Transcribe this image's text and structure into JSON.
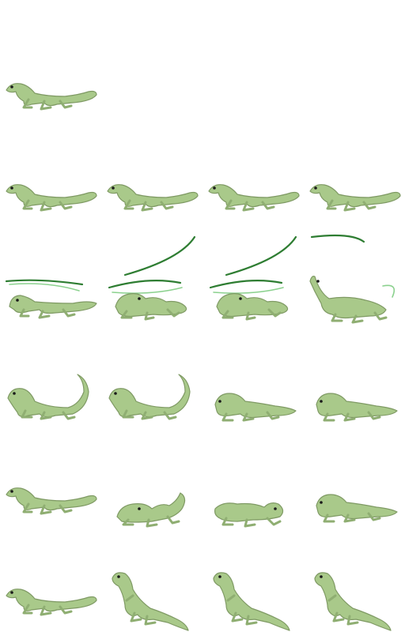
{
  "colors": {
    "body": "#a9c98a",
    "outline": "#7f9a64",
    "shade": "#8fae72",
    "eye": "#1a1a1a",
    "slash_dark": "#2e7d32",
    "slash_light": "#8bd18e"
  },
  "sprite_sheet": {
    "grid": {
      "columns": 4,
      "rows": 6
    },
    "rows": [
      {
        "name": "idle",
        "frames": [
          "side-walk"
        ]
      },
      {
        "name": "walk",
        "frames": [
          "side-walk",
          "side-walk",
          "side-walk",
          "side-walk"
        ]
      },
      {
        "name": "tail-swipe-attack",
        "frames": [
          "crouch-slash",
          "curl-slash",
          "curl-slash",
          "tail-up-slash"
        ]
      },
      {
        "name": "tail-raise",
        "frames": [
          "tail-raised",
          "tail-raised",
          "hunch",
          "hunch"
        ]
      },
      {
        "name": "curl",
        "frames": [
          "side-walk",
          "curl",
          "curl-reverse",
          "hunch"
        ]
      },
      {
        "name": "rear-up",
        "frames": [
          "side-walk",
          "rear-up",
          "rear-up",
          "rear-up"
        ]
      }
    ]
  }
}
